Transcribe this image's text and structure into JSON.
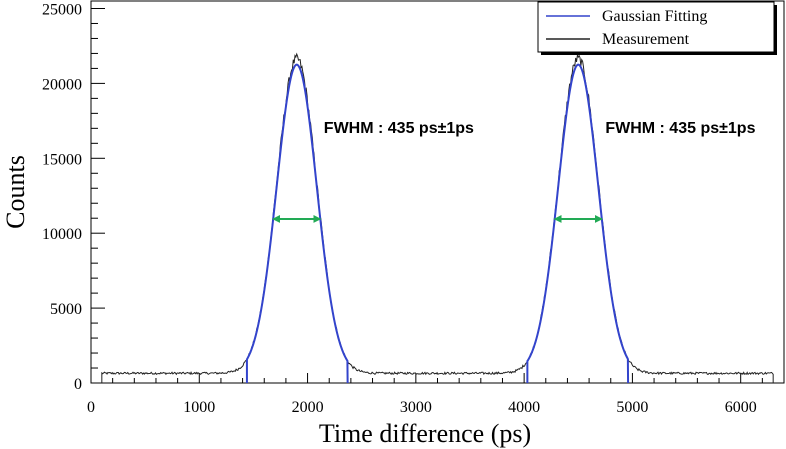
{
  "chart_data": {
    "type": "line",
    "xlabel": "Time difference (ps)",
    "ylabel": "Counts",
    "xlim": [
      0,
      6400
    ],
    "ylim": [
      0,
      25500
    ],
    "x_ticks": [
      0,
      1000,
      2000,
      3000,
      4000,
      5000,
      6000
    ],
    "y_ticks": [
      0,
      5000,
      10000,
      15000,
      20000,
      25000
    ],
    "x_tick_labels": [
      "0",
      "1000",
      "2000",
      "3000",
      "4000",
      "5000",
      "6000"
    ],
    "y_tick_labels": [
      "0",
      "5000",
      "10000",
      "15000",
      "20000",
      "25000"
    ],
    "grid": false,
    "legend_position": "top-right",
    "legend": [
      {
        "name": "Gaussian Fitting",
        "color": "#3344cc"
      },
      {
        "name": "Measurement",
        "color": "#222222"
      }
    ],
    "series": [
      {
        "name": "Measurement",
        "color": "#222222",
        "x_range": [
          100,
          6300
        ],
        "baseline": 650,
        "peaks": [
          {
            "center": 1900,
            "amplitude": 21000,
            "fwhm": 435
          },
          {
            "center": 4500,
            "amplitude": 21000,
            "fwhm": 435
          }
        ]
      },
      {
        "name": "Gaussian Fitting",
        "color": "#3344cc",
        "peaks": [
          {
            "center": 1900,
            "amplitude": 20600,
            "fwhm": 435,
            "fit_range": [
              1440,
              2370
            ]
          },
          {
            "center": 4500,
            "amplitude": 20600,
            "fwhm": 435,
            "fit_range": [
              4030,
              4960
            ]
          }
        ]
      }
    ],
    "annotations": [
      {
        "text": "FWHM : 435 ps±1ps",
        "x": 2150,
        "y": 16700
      },
      {
        "text": "FWHM : 435 ps±1ps",
        "x": 4750,
        "y": 16700
      }
    ],
    "fwhm_arrows": [
      {
        "x1": 1682,
        "x2": 2118,
        "y": 10950,
        "color": "#22aa55"
      },
      {
        "x1": 4282,
        "x2": 4718,
        "y": 10950,
        "color": "#22aa55"
      }
    ]
  }
}
